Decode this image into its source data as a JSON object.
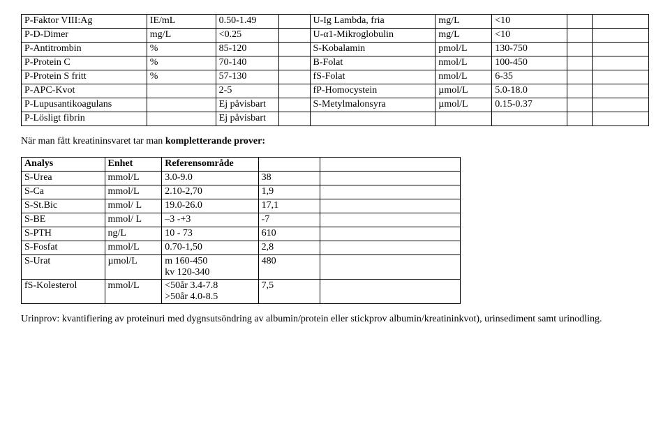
{
  "table1": {
    "rows": [
      [
        "P-Faktor VIII:Ag",
        "IE/mL",
        "0.50-1.49",
        "",
        "U-Ig Lambda, fria",
        "mg/L",
        "<10",
        "",
        ""
      ],
      [
        "P-D-Dimer",
        "mg/L",
        "<0.25",
        "",
        "U-α1-Mikroglobulin",
        "mg/L",
        "<10",
        "",
        ""
      ],
      [
        "P-Antitrombin",
        "%",
        "85-120",
        "",
        "S-Kobalamin",
        "pmol/L",
        "130-750",
        "",
        ""
      ],
      [
        "P-Protein C",
        "%",
        "70-140",
        "",
        "B-Folat",
        "nmol/L",
        "100-450",
        "",
        ""
      ],
      [
        "P-Protein S fritt",
        "%",
        "57-130",
        "",
        "fS-Folat",
        "nmol/L",
        "6-35",
        "",
        ""
      ],
      [
        "P-APC-Kvot",
        "",
        "2-5",
        "",
        "fP-Homocystein",
        "µmol/L",
        "5.0-18.0",
        "",
        ""
      ],
      [
        "P-Lupusantikoagulans",
        "",
        "Ej påvisbart",
        "",
        "S-Metylmalonsyra",
        "µmol/L",
        "0.15-0.37",
        "",
        ""
      ],
      [
        "P-Lösligt fibrin",
        "",
        "Ej påvisbart",
        "",
        "",
        "",
        "",
        "",
        ""
      ]
    ]
  },
  "para1_pre": "När man fått kreatininsvaret tar man ",
  "para1_bold": "kompletterande prover:",
  "table2": {
    "header": [
      "Analys",
      "Enhet",
      "Referensområde",
      "",
      ""
    ],
    "rows": [
      [
        "S-Urea",
        "mmol/L",
        "3.0-9.0",
        "38",
        ""
      ],
      [
        "S-Ca",
        "mmol/L",
        "2.10-2,70",
        "1,9",
        ""
      ],
      [
        "S-St.Bic",
        "mmol/ L",
        "19.0-26.0",
        "17,1",
        ""
      ],
      [
        "S-BE",
        "mmol/ L",
        "–3 -+3",
        "-7",
        ""
      ],
      [
        "S-PTH",
        "ng/L",
        "10 - 73",
        "610",
        ""
      ],
      [
        "S-Fosfat",
        "mmol/L",
        "0.70-1,50",
        "2,8",
        ""
      ],
      [
        "S-Urat",
        "µmol/L",
        "m 160-450\nkv 120-340",
        "480",
        ""
      ],
      [
        "fS-Kolesterol",
        "mmol/L",
        "<50år  3.4-7.8\n>50år  4.0-8.5",
        "7,5",
        ""
      ]
    ]
  },
  "para2": "Urinprov: kvantifiering av proteinuri med dygnsutsöndring av albumin/protein eller stickprov albumin/kreatininkvot), urinsediment samt urinodling."
}
